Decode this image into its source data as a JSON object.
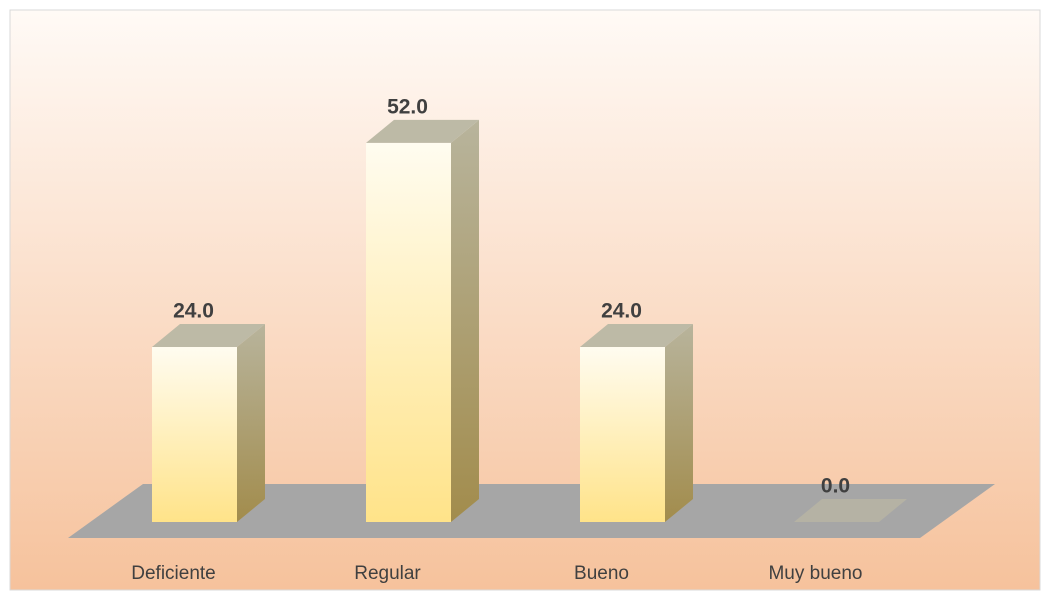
{
  "chart_data": {
    "type": "bar3d",
    "categories": [
      "Deficiente",
      "Regular",
      "Bueno",
      "Muy bueno"
    ],
    "values": [
      24,
      52,
      24,
      0
    ],
    "value_labels": [
      "24.0",
      "52.0",
      "24.0",
      "0.0"
    ],
    "color": "#ffe389"
  }
}
